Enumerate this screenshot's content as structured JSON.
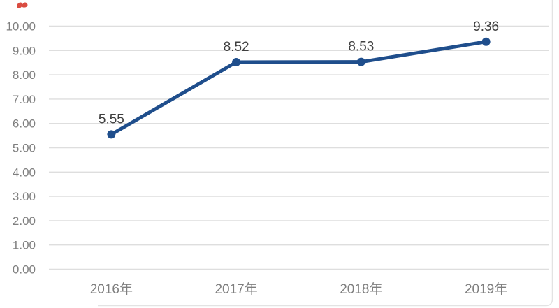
{
  "chart_data": {
    "type": "line",
    "title": "",
    "xlabel": "",
    "ylabel": "",
    "categories": [
      "2016年",
      "2017年",
      "2018年",
      "2019年"
    ],
    "values": [
      5.55,
      8.52,
      8.53,
      9.36
    ],
    "data_labels": [
      "5.55",
      "8.52",
      "8.53",
      "9.36"
    ],
    "y_ticks": [
      "10.00",
      "9.00",
      "8.00",
      "7.00",
      "6.00",
      "5.00",
      "4.00",
      "3.00",
      "2.00",
      "1.00",
      "0.00"
    ],
    "ylim": [
      0,
      10
    ],
    "grid": true,
    "legend": "none"
  },
  "colors": {
    "line": "#1f4e8c",
    "marker": "#1f4e8c",
    "gridline": "#dedede",
    "tick_label": "#7f7f7f",
    "data_label": "#3f3f3f",
    "border": "#e3e3e3",
    "background": "#ffffff",
    "red_mark": "#d6392c"
  }
}
